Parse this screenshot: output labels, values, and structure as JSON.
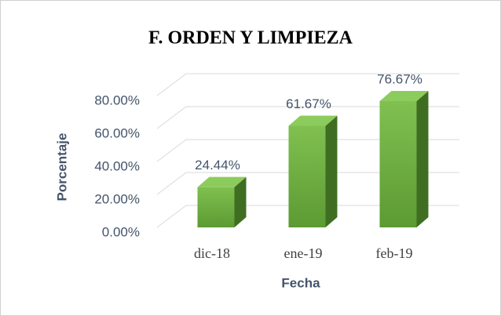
{
  "chart_data": {
    "type": "bar3d",
    "title": "F. ORDEN Y LIMPIEZA",
    "x_label": "Fecha",
    "y_label": "Porcentaje",
    "categories": [
      "dic-18",
      "ene-19",
      "feb-19"
    ],
    "values": [
      24.44,
      61.67,
      76.67
    ],
    "value_labels": [
      "24.44%",
      "61.67%",
      "76.67%"
    ],
    "color": "#70ad47",
    "ylim": [
      0,
      80
    ],
    "yticks": [
      {
        "value": 0,
        "label": "0.00%"
      },
      {
        "value": 20,
        "label": "20.00%"
      },
      {
        "value": 40,
        "label": "40.00%"
      },
      {
        "value": 60,
        "label": "60.00%"
      },
      {
        "value": 80,
        "label": "80.00%"
      }
    ],
    "grid": true
  }
}
